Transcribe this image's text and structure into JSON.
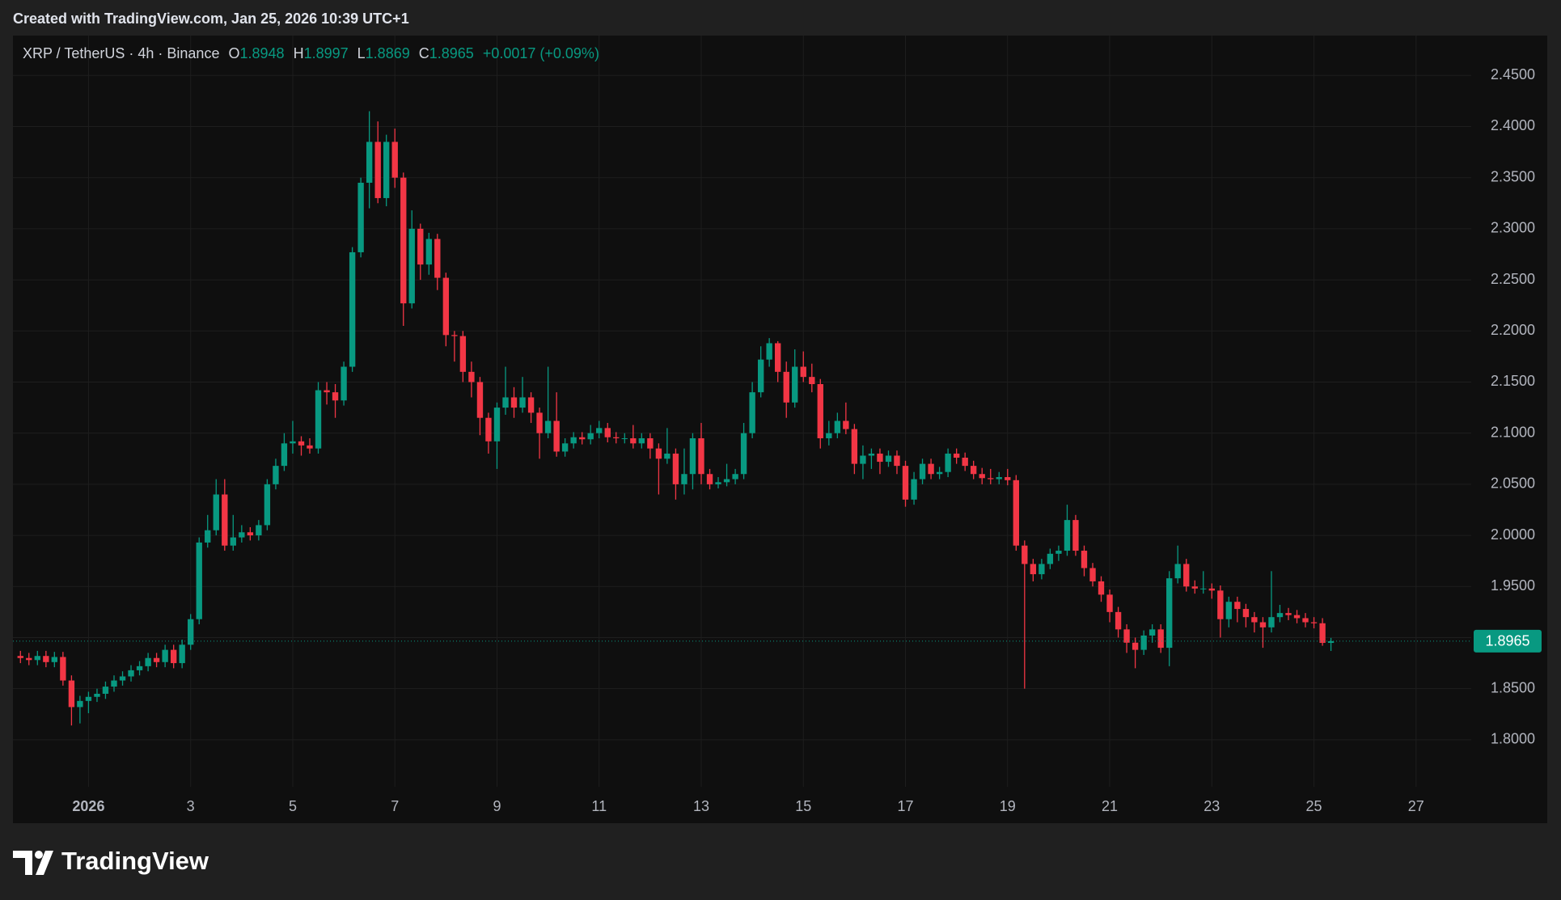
{
  "header": {
    "created_note": "Created with TradingView.com, Jan 25, 2026 10:39 UTC+1"
  },
  "footer": {
    "brand": "TradingView"
  },
  "chart_data": {
    "type": "candlestick",
    "symbol": "XRP / TetherUS · 4h · Binance",
    "ohlc_labels": [
      "O",
      "H",
      "L",
      "C"
    ],
    "change": "+0.0017 (+0.09%)",
    "up_color": "#089981",
    "down_color": "#f23645",
    "grid": true,
    "xlim": [
      -0.48,
      28.08
    ],
    "ylim": [
      1.754,
      2.489
    ],
    "xticks": [
      {
        "value": 1,
        "label": "2026"
      },
      3,
      5,
      7,
      9,
      11,
      13,
      15,
      17,
      19,
      21,
      23,
      25,
      27
    ],
    "yticks": [
      {
        "value": 1.8,
        "label": "1.8000"
      },
      {
        "value": 1.85,
        "label": "1.8500"
      },
      {
        "value": 1.9,
        "label": "1.9000"
      },
      {
        "value": 1.95,
        "label": "1.9500"
      },
      {
        "value": 2.0,
        "label": "2.0000"
      },
      {
        "value": 2.05,
        "label": "2.0500"
      },
      {
        "value": 2.1,
        "label": "2.1000"
      },
      {
        "value": 2.15,
        "label": "2.1500"
      },
      {
        "value": 2.2,
        "label": "2.2000"
      },
      {
        "value": 2.25,
        "label": "2.2500"
      },
      {
        "value": 2.3,
        "label": "2.3000"
      },
      {
        "value": 2.35,
        "label": "2.3500"
      },
      {
        "value": 2.4,
        "label": "2.4000"
      },
      {
        "value": 2.45,
        "label": "2.4500"
      }
    ],
    "x": [
      -0.333,
      -0.167,
      0,
      0.167,
      0.333,
      0.5,
      0.667,
      0.833,
      1,
      1.167,
      1.333,
      1.5,
      1.667,
      1.833,
      2,
      2.167,
      2.333,
      2.5,
      2.667,
      2.833,
      3,
      3.167,
      3.333,
      3.5,
      3.667,
      3.833,
      4,
      4.167,
      4.333,
      4.5,
      4.667,
      4.833,
      5,
      5.167,
      5.333,
      5.5,
      5.667,
      5.833,
      6,
      6.167,
      6.333,
      6.5,
      6.667,
      6.833,
      7,
      7.167,
      7.333,
      7.5,
      7.667,
      7.833,
      8,
      8.167,
      8.333,
      8.5,
      8.667,
      8.833,
      9,
      9.167,
      9.333,
      9.5,
      9.667,
      9.833,
      10,
      10.167,
      10.333,
      10.5,
      10.667,
      10.833,
      11,
      11.167,
      11.333,
      11.5,
      11.667,
      11.833,
      12,
      12.167,
      12.333,
      12.5,
      12.667,
      12.833,
      13,
      13.167,
      13.333,
      13.5,
      13.667,
      13.833,
      14,
      14.167,
      14.333,
      14.5,
      14.667,
      14.833,
      15,
      15.167,
      15.333,
      15.5,
      15.667,
      15.833,
      16,
      16.167,
      16.333,
      16.5,
      16.667,
      16.833,
      17,
      17.167,
      17.333,
      17.5,
      17.667,
      17.833,
      18,
      18.167,
      18.333,
      18.5,
      18.667,
      18.833,
      19,
      19.167,
      19.333,
      19.5,
      19.667,
      19.833,
      20,
      20.167,
      20.333,
      20.5,
      20.667,
      20.833,
      21,
      21.167,
      21.333,
      21.5,
      21.667,
      21.833,
      22,
      22.167,
      22.333,
      22.5,
      22.667,
      22.833,
      23,
      23.167,
      23.333,
      23.5,
      23.667,
      23.833,
      24,
      24.167,
      24.333,
      24.5,
      24.667,
      24.833,
      25,
      25.167,
      25.333
    ],
    "ohlc": [
      [
        1.882,
        1.887,
        1.875,
        1.88
      ],
      [
        1.88,
        1.885,
        1.873,
        1.878
      ],
      [
        1.878,
        1.887,
        1.873,
        1.882
      ],
      [
        1.882,
        1.887,
        1.871,
        1.876
      ],
      [
        1.876,
        1.886,
        1.871,
        1.881
      ],
      [
        1.881,
        1.886,
        1.853,
        1.858
      ],
      [
        1.858,
        1.863,
        1.814,
        1.832
      ],
      [
        1.832,
        1.843,
        1.816,
        1.838
      ],
      [
        1.838,
        1.847,
        1.826,
        1.842
      ],
      [
        1.842,
        1.85,
        1.837,
        1.845
      ],
      [
        1.845,
        1.857,
        1.84,
        1.852
      ],
      [
        1.852,
        1.863,
        1.847,
        1.858
      ],
      [
        1.858,
        1.867,
        1.853,
        1.862
      ],
      [
        1.862,
        1.873,
        1.857,
        1.868
      ],
      [
        1.868,
        1.877,
        1.863,
        1.872
      ],
      [
        1.872,
        1.885,
        1.867,
        1.88
      ],
      [
        1.88,
        1.885,
        1.871,
        1.876
      ],
      [
        1.876,
        1.893,
        1.871,
        1.888
      ],
      [
        1.888,
        1.893,
        1.87,
        1.875
      ],
      [
        1.875,
        1.898,
        1.87,
        1.893
      ],
      [
        1.893,
        1.923,
        1.888,
        1.918
      ],
      [
        1.918,
        1.998,
        1.913,
        1.993
      ],
      [
        1.993,
        2.02,
        1.988,
        2.005
      ],
      [
        2.005,
        2.055,
        2.0,
        2.04
      ],
      [
        2.04,
        2.055,
        1.985,
        1.99
      ],
      [
        1.99,
        2.02,
        1.985,
        1.998
      ],
      [
        1.998,
        2.01,
        1.993,
        2.003
      ],
      [
        2.003,
        2.008,
        1.995,
        2.0
      ],
      [
        2.0,
        2.015,
        1.995,
        2.01
      ],
      [
        2.01,
        2.055,
        2.005,
        2.05
      ],
      [
        2.05,
        2.075,
        2.045,
        2.068
      ],
      [
        2.068,
        2.1,
        2.063,
        2.09
      ],
      [
        2.09,
        2.112,
        2.08,
        2.092
      ],
      [
        2.092,
        2.097,
        2.078,
        2.088
      ],
      [
        2.088,
        2.095,
        2.08,
        2.085
      ],
      [
        2.085,
        2.15,
        2.08,
        2.142
      ],
      [
        2.142,
        2.15,
        2.128,
        2.14
      ],
      [
        2.14,
        2.148,
        2.115,
        2.132
      ],
      [
        2.132,
        2.17,
        2.127,
        2.165
      ],
      [
        2.165,
        2.282,
        2.16,
        2.277
      ],
      [
        2.277,
        2.35,
        2.272,
        2.345
      ],
      [
        2.345,
        2.415,
        2.32,
        2.385
      ],
      [
        2.385,
        2.405,
        2.325,
        2.33
      ],
      [
        2.33,
        2.392,
        2.322,
        2.385
      ],
      [
        2.385,
        2.398,
        2.34,
        2.35
      ],
      [
        2.35,
        2.355,
        2.205,
        2.227
      ],
      [
        2.227,
        2.318,
        2.222,
        2.3
      ],
      [
        2.3,
        2.305,
        2.25,
        2.265
      ],
      [
        2.265,
        2.296,
        2.255,
        2.29
      ],
      [
        2.29,
        2.295,
        2.24,
        2.252
      ],
      [
        2.252,
        2.257,
        2.185,
        2.196
      ],
      [
        2.196,
        2.2,
        2.17,
        2.195
      ],
      [
        2.195,
        2.2,
        2.15,
        2.16
      ],
      [
        2.16,
        2.17,
        2.135,
        2.15
      ],
      [
        2.15,
        2.155,
        2.098,
        2.115
      ],
      [
        2.115,
        2.12,
        2.08,
        2.092
      ],
      [
        2.092,
        2.13,
        2.065,
        2.125
      ],
      [
        2.125,
        2.165,
        2.118,
        2.135
      ],
      [
        2.135,
        2.145,
        2.115,
        2.125
      ],
      [
        2.125,
        2.155,
        2.12,
        2.135
      ],
      [
        2.135,
        2.14,
        2.11,
        2.12
      ],
      [
        2.12,
        2.125,
        2.075,
        2.1
      ],
      [
        2.1,
        2.165,
        2.095,
        2.112
      ],
      [
        2.112,
        2.14,
        2.077,
        2.082
      ],
      [
        2.082,
        2.095,
        2.077,
        2.09
      ],
      [
        2.09,
        2.101,
        2.085,
        2.096
      ],
      [
        2.096,
        2.101,
        2.089,
        2.094
      ],
      [
        2.094,
        2.108,
        2.089,
        2.1
      ],
      [
        2.1,
        2.112,
        2.095,
        2.105
      ],
      [
        2.105,
        2.11,
        2.091,
        2.096
      ],
      [
        2.096,
        2.101,
        2.09,
        2.095
      ],
      [
        2.095,
        2.1,
        2.09,
        2.095
      ],
      [
        2.095,
        2.108,
        2.085,
        2.09
      ],
      [
        2.09,
        2.1,
        2.085,
        2.095
      ],
      [
        2.095,
        2.1,
        2.075,
        2.085
      ],
      [
        2.085,
        2.09,
        2.04,
        2.075
      ],
      [
        2.075,
        2.105,
        2.07,
        2.08
      ],
      [
        2.08,
        2.085,
        2.035,
        2.05
      ],
      [
        2.05,
        2.085,
        2.04,
        2.06
      ],
      [
        2.06,
        2.1,
        2.045,
        2.095
      ],
      [
        2.095,
        2.11,
        2.05,
        2.06
      ],
      [
        2.06,
        2.065,
        2.045,
        2.05
      ],
      [
        2.05,
        2.057,
        2.046,
        2.052
      ],
      [
        2.052,
        2.07,
        2.048,
        2.055
      ],
      [
        2.055,
        2.065,
        2.05,
        2.06
      ],
      [
        2.06,
        2.11,
        2.055,
        2.1
      ],
      [
        2.1,
        2.15,
        2.095,
        2.14
      ],
      [
        2.14,
        2.185,
        2.135,
        2.172
      ],
      [
        2.172,
        2.193,
        2.165,
        2.188
      ],
      [
        2.188,
        2.19,
        2.15,
        2.16
      ],
      [
        2.16,
        2.17,
        2.115,
        2.13
      ],
      [
        2.13,
        2.182,
        2.125,
        2.165
      ],
      [
        2.165,
        2.18,
        2.15,
        2.155
      ],
      [
        2.155,
        2.168,
        2.14,
        2.148
      ],
      [
        2.148,
        2.153,
        2.085,
        2.095
      ],
      [
        2.095,
        2.112,
        2.088,
        2.1
      ],
      [
        2.1,
        2.12,
        2.095,
        2.112
      ],
      [
        2.112,
        2.13,
        2.099,
        2.104
      ],
      [
        2.104,
        2.109,
        2.06,
        2.07
      ],
      [
        2.07,
        2.088,
        2.055,
        2.078
      ],
      [
        2.078,
        2.085,
        2.065,
        2.08
      ],
      [
        2.08,
        2.085,
        2.06,
        2.072
      ],
      [
        2.072,
        2.083,
        2.067,
        2.078
      ],
      [
        2.078,
        2.083,
        2.06,
        2.068
      ],
      [
        2.068,
        2.073,
        2.028,
        2.035
      ],
      [
        2.035,
        2.062,
        2.03,
        2.055
      ],
      [
        2.055,
        2.075,
        2.05,
        2.07
      ],
      [
        2.07,
        2.075,
        2.055,
        2.06
      ],
      [
        2.06,
        2.067,
        2.055,
        2.062
      ],
      [
        2.062,
        2.085,
        2.057,
        2.08
      ],
      [
        2.08,
        2.085,
        2.07,
        2.076
      ],
      [
        2.076,
        2.081,
        2.063,
        2.068
      ],
      [
        2.068,
        2.073,
        2.055,
        2.06
      ],
      [
        2.06,
        2.066,
        2.05,
        2.056
      ],
      [
        2.056,
        2.065,
        2.05,
        2.055
      ],
      [
        2.055,
        2.062,
        2.05,
        2.057
      ],
      [
        2.057,
        2.065,
        2.049,
        2.054
      ],
      [
        2.054,
        2.059,
        1.985,
        1.99
      ],
      [
        1.99,
        1.995,
        1.85,
        1.972
      ],
      [
        1.972,
        1.977,
        1.955,
        1.962
      ],
      [
        1.962,
        1.977,
        1.957,
        1.972
      ],
      [
        1.972,
        1.987,
        1.967,
        1.982
      ],
      [
        1.982,
        1.99,
        1.975,
        1.985
      ],
      [
        1.985,
        2.03,
        1.98,
        2.015
      ],
      [
        2.015,
        2.02,
        1.98,
        1.985
      ],
      [
        1.985,
        1.99,
        1.96,
        1.968
      ],
      [
        1.968,
        1.973,
        1.95,
        1.955
      ],
      [
        1.955,
        1.96,
        1.935,
        1.942
      ],
      [
        1.942,
        1.947,
        1.915,
        1.925
      ],
      [
        1.925,
        1.93,
        1.9,
        1.908
      ],
      [
        1.908,
        1.913,
        1.885,
        1.895
      ],
      [
        1.895,
        1.9,
        1.87,
        1.888
      ],
      [
        1.888,
        1.907,
        1.883,
        1.902
      ],
      [
        1.902,
        1.913,
        1.895,
        1.908
      ],
      [
        1.908,
        1.913,
        1.885,
        1.89
      ],
      [
        1.89,
        1.965,
        1.872,
        1.958
      ],
      [
        1.958,
        1.99,
        1.953,
        1.972
      ],
      [
        1.972,
        1.977,
        1.945,
        1.95
      ],
      [
        1.95,
        1.956,
        1.943,
        1.948
      ],
      [
        1.948,
        1.965,
        1.943,
        1.948
      ],
      [
        1.948,
        1.953,
        1.938,
        1.946
      ],
      [
        1.946,
        1.951,
        1.9,
        1.918
      ],
      [
        1.918,
        1.94,
        1.91,
        1.935
      ],
      [
        1.935,
        1.94,
        1.915,
        1.928
      ],
      [
        1.928,
        1.933,
        1.91,
        1.92
      ],
      [
        1.92,
        1.925,
        1.905,
        1.915
      ],
      [
        1.915,
        1.92,
        1.89,
        1.91
      ],
      [
        1.91,
        1.965,
        1.905,
        1.92
      ],
      [
        1.92,
        1.932,
        1.915,
        1.924
      ],
      [
        1.924,
        1.929,
        1.917,
        1.922
      ],
      [
        1.922,
        1.927,
        1.914,
        1.919
      ],
      [
        1.919,
        1.924,
        1.91,
        1.915
      ],
      [
        1.915,
        1.92,
        1.909,
        1.914
      ],
      [
        1.914,
        1.919,
        1.892,
        1.8948
      ],
      [
        1.8948,
        1.8997,
        1.8869,
        1.8965
      ]
    ]
  }
}
